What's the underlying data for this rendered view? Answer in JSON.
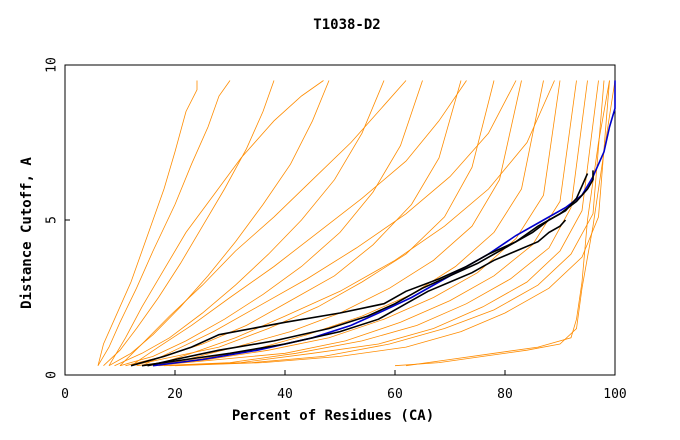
{
  "chart_data": {
    "type": "line",
    "title": "T1038-D2",
    "xlabel": "Percent of Residues (CA)",
    "ylabel": "Distance Cutoff, A",
    "xlim": [
      0,
      100
    ],
    "ylim": [
      0,
      10
    ],
    "x_ticks": [
      "0",
      "20",
      "40",
      "60",
      "80",
      "100"
    ],
    "y_ticks": [
      "0",
      "5",
      "10"
    ],
    "grid": false,
    "legend": "none",
    "colors": {
      "background_curves": "#ff8c00",
      "highlight_blue": "#0000cc",
      "highlight_black": "#000000"
    },
    "series": [
      {
        "x": [
          6,
          7,
          9,
          12,
          15,
          18,
          20,
          22,
          24,
          24
        ],
        "y": [
          0.3,
          1.0,
          1.8,
          3.0,
          4.5,
          6.0,
          7.2,
          8.5,
          9.2,
          9.5
        ]
      },
      {
        "x": [
          6,
          8,
          10,
          13,
          16,
          20,
          23,
          26,
          28,
          30
        ],
        "y": [
          0.3,
          0.9,
          1.7,
          2.8,
          4.0,
          5.5,
          6.8,
          8.0,
          9.0,
          9.5
        ]
      },
      {
        "x": [
          7,
          10,
          13,
          17,
          21,
          25,
          29,
          33,
          36,
          38
        ],
        "y": [
          0.3,
          0.8,
          1.5,
          2.5,
          3.6,
          4.8,
          6.0,
          7.3,
          8.5,
          9.5
        ]
      },
      {
        "x": [
          8,
          12,
          16,
          21,
          26,
          31,
          36,
          41,
          45,
          48
        ],
        "y": [
          0.3,
          0.7,
          1.3,
          2.2,
          3.2,
          4.3,
          5.5,
          6.8,
          8.2,
          9.5
        ]
      },
      {
        "x": [
          9,
          14,
          19,
          25,
          31,
          37,
          43,
          49,
          54,
          58
        ],
        "y": [
          0.3,
          0.7,
          1.2,
          2.0,
          2.9,
          3.9,
          5.0,
          6.3,
          7.8,
          9.5
        ]
      },
      {
        "x": [
          10,
          16,
          22,
          29,
          36,
          43,
          50,
          56,
          61,
          65
        ],
        "y": [
          0.3,
          0.6,
          1.1,
          1.8,
          2.6,
          3.5,
          4.6,
          5.9,
          7.4,
          9.5
        ]
      },
      {
        "x": [
          11,
          18,
          25,
          33,
          41,
          49,
          56,
          63,
          68,
          72
        ],
        "y": [
          0.3,
          0.6,
          1.0,
          1.6,
          2.4,
          3.2,
          4.2,
          5.5,
          7.0,
          9.5
        ]
      },
      {
        "x": [
          12,
          20,
          28,
          37,
          46,
          54,
          62,
          69,
          74,
          78
        ],
        "y": [
          0.3,
          0.6,
          0.9,
          1.5,
          2.2,
          3.0,
          3.9,
          5.1,
          6.7,
          9.5
        ]
      },
      {
        "x": [
          13,
          22,
          31,
          41,
          50,
          59,
          67,
          74,
          79,
          83
        ],
        "y": [
          0.3,
          0.5,
          0.9,
          1.4,
          2.0,
          2.8,
          3.7,
          4.8,
          6.3,
          9.5
        ]
      },
      {
        "x": [
          14,
          24,
          34,
          44,
          54,
          63,
          71,
          78,
          83,
          87
        ],
        "y": [
          0.3,
          0.5,
          0.8,
          1.3,
          1.9,
          2.6,
          3.5,
          4.6,
          6.0,
          9.5
        ]
      },
      {
        "x": [
          15,
          26,
          37,
          48,
          58,
          67,
          75,
          82,
          87,
          90
        ],
        "y": [
          0.3,
          0.5,
          0.8,
          1.2,
          1.8,
          2.5,
          3.3,
          4.4,
          5.8,
          9.5
        ]
      },
      {
        "x": [
          16,
          28,
          40,
          51,
          61,
          70,
          78,
          85,
          90,
          93
        ],
        "y": [
          0.3,
          0.5,
          0.7,
          1.1,
          1.7,
          2.4,
          3.2,
          4.2,
          5.6,
          9.5
        ]
      },
      {
        "x": [
          17,
          30,
          42,
          54,
          64,
          73,
          81,
          88,
          92,
          95
        ],
        "y": [
          0.3,
          0.4,
          0.7,
          1.1,
          1.6,
          2.3,
          3.1,
          4.1,
          5.4,
          9.5
        ]
      },
      {
        "x": [
          18,
          32,
          45,
          57,
          67,
          76,
          84,
          90,
          94,
          97
        ],
        "y": [
          0.3,
          0.4,
          0.7,
          1.0,
          1.5,
          2.2,
          3.0,
          4.0,
          5.3,
          9.5
        ]
      },
      {
        "x": [
          19,
          34,
          47,
          59,
          69,
          78,
          86,
          92,
          96,
          98
        ],
        "y": [
          0.3,
          0.4,
          0.6,
          1.0,
          1.5,
          2.1,
          2.9,
          3.9,
          5.2,
          9.5
        ]
      },
      {
        "x": [
          20,
          36,
          50,
          62,
          72,
          80,
          88,
          94,
          97,
          99
        ],
        "y": [
          0.3,
          0.4,
          0.6,
          0.9,
          1.4,
          2.0,
          2.8,
          3.8,
          5.1,
          9.5
        ]
      },
      {
        "x": [
          8,
          11,
          14,
          18,
          22,
          27,
          32,
          38,
          43,
          47
        ],
        "y": [
          0.3,
          1.2,
          2.2,
          3.4,
          4.6,
          5.8,
          7.0,
          8.2,
          9.0,
          9.5
        ]
      },
      {
        "x": [
          10,
          14,
          19,
          25,
          31,
          38,
          45,
          52,
          58,
          62
        ],
        "y": [
          0.3,
          1.0,
          1.9,
          2.9,
          4.0,
          5.1,
          6.3,
          7.5,
          8.7,
          9.5
        ]
      },
      {
        "x": [
          12,
          17,
          23,
          30,
          38,
          46,
          54,
          62,
          68,
          73
        ],
        "y": [
          0.3,
          0.9,
          1.6,
          2.5,
          3.5,
          4.6,
          5.7,
          6.9,
          8.2,
          9.5
        ]
      },
      {
        "x": [
          14,
          20,
          27,
          35,
          44,
          53,
          62,
          70,
          77,
          82
        ],
        "y": [
          0.3,
          0.8,
          1.4,
          2.2,
          3.1,
          4.1,
          5.2,
          6.4,
          7.8,
          9.5
        ]
      },
      {
        "x": [
          16,
          23,
          31,
          40,
          50,
          60,
          69,
          77,
          84,
          89
        ],
        "y": [
          0.3,
          0.7,
          1.2,
          1.9,
          2.7,
          3.7,
          4.8,
          6.0,
          7.5,
          9.5
        ]
      },
      {
        "x": [
          62,
          70,
          78,
          86,
          92,
          93,
          94,
          95,
          97,
          99
        ],
        "y": [
          0.3,
          0.5,
          0.7,
          0.9,
          1.2,
          1.8,
          3.0,
          5.0,
          7.5,
          9.5
        ]
      },
      {
        "x": [
          60,
          68,
          76,
          84,
          90,
          93,
          94,
          96,
          98,
          100
        ],
        "y": [
          0.3,
          0.4,
          0.6,
          0.8,
          1.0,
          1.5,
          2.8,
          4.8,
          7.2,
          9.5
        ]
      }
    ],
    "highlight_series": [
      {
        "color": "#0000cc",
        "x": [
          16,
          25,
          35,
          45,
          52,
          57,
          63,
          68,
          72,
          77,
          82,
          87,
          91,
          94,
          96,
          98,
          99,
          100,
          100
        ],
        "y": [
          0.3,
          0.5,
          0.8,
          1.2,
          1.6,
          2.0,
          2.5,
          3.0,
          3.4,
          3.9,
          4.5,
          5.0,
          5.4,
          5.8,
          6.4,
          7.2,
          8.0,
          8.6,
          9.5
        ]
      },
      {
        "color": "#000000",
        "x": [
          12,
          18,
          23,
          28,
          40,
          50,
          58,
          62,
          68,
          73,
          77,
          82,
          86,
          90,
          93,
          95,
          96,
          96
        ],
        "y": [
          0.3,
          0.6,
          0.9,
          1.3,
          1.7,
          2.0,
          2.3,
          2.7,
          3.1,
          3.5,
          3.9,
          4.3,
          4.8,
          5.2,
          5.6,
          6.0,
          6.3,
          6.6
        ]
      },
      {
        "color": "#000000",
        "x": [
          15,
          20,
          28,
          38,
          48,
          55,
          60,
          65,
          70,
          75,
          80,
          85,
          88,
          91,
          93,
          94,
          95
        ],
        "y": [
          0.3,
          0.5,
          0.8,
          1.1,
          1.5,
          1.9,
          2.3,
          2.8,
          3.2,
          3.6,
          4.1,
          4.6,
          5.0,
          5.3,
          5.7,
          6.1,
          6.5
        ]
      },
      {
        "color": "#000000",
        "x": [
          14,
          22,
          30,
          40,
          50,
          57,
          62,
          66,
          70,
          74,
          78,
          82,
          86,
          88,
          90,
          91
        ],
        "y": [
          0.3,
          0.5,
          0.7,
          1.0,
          1.4,
          1.8,
          2.3,
          2.7,
          3.0,
          3.3,
          3.7,
          4.0,
          4.3,
          4.6,
          4.8,
          5.0
        ]
      }
    ]
  }
}
